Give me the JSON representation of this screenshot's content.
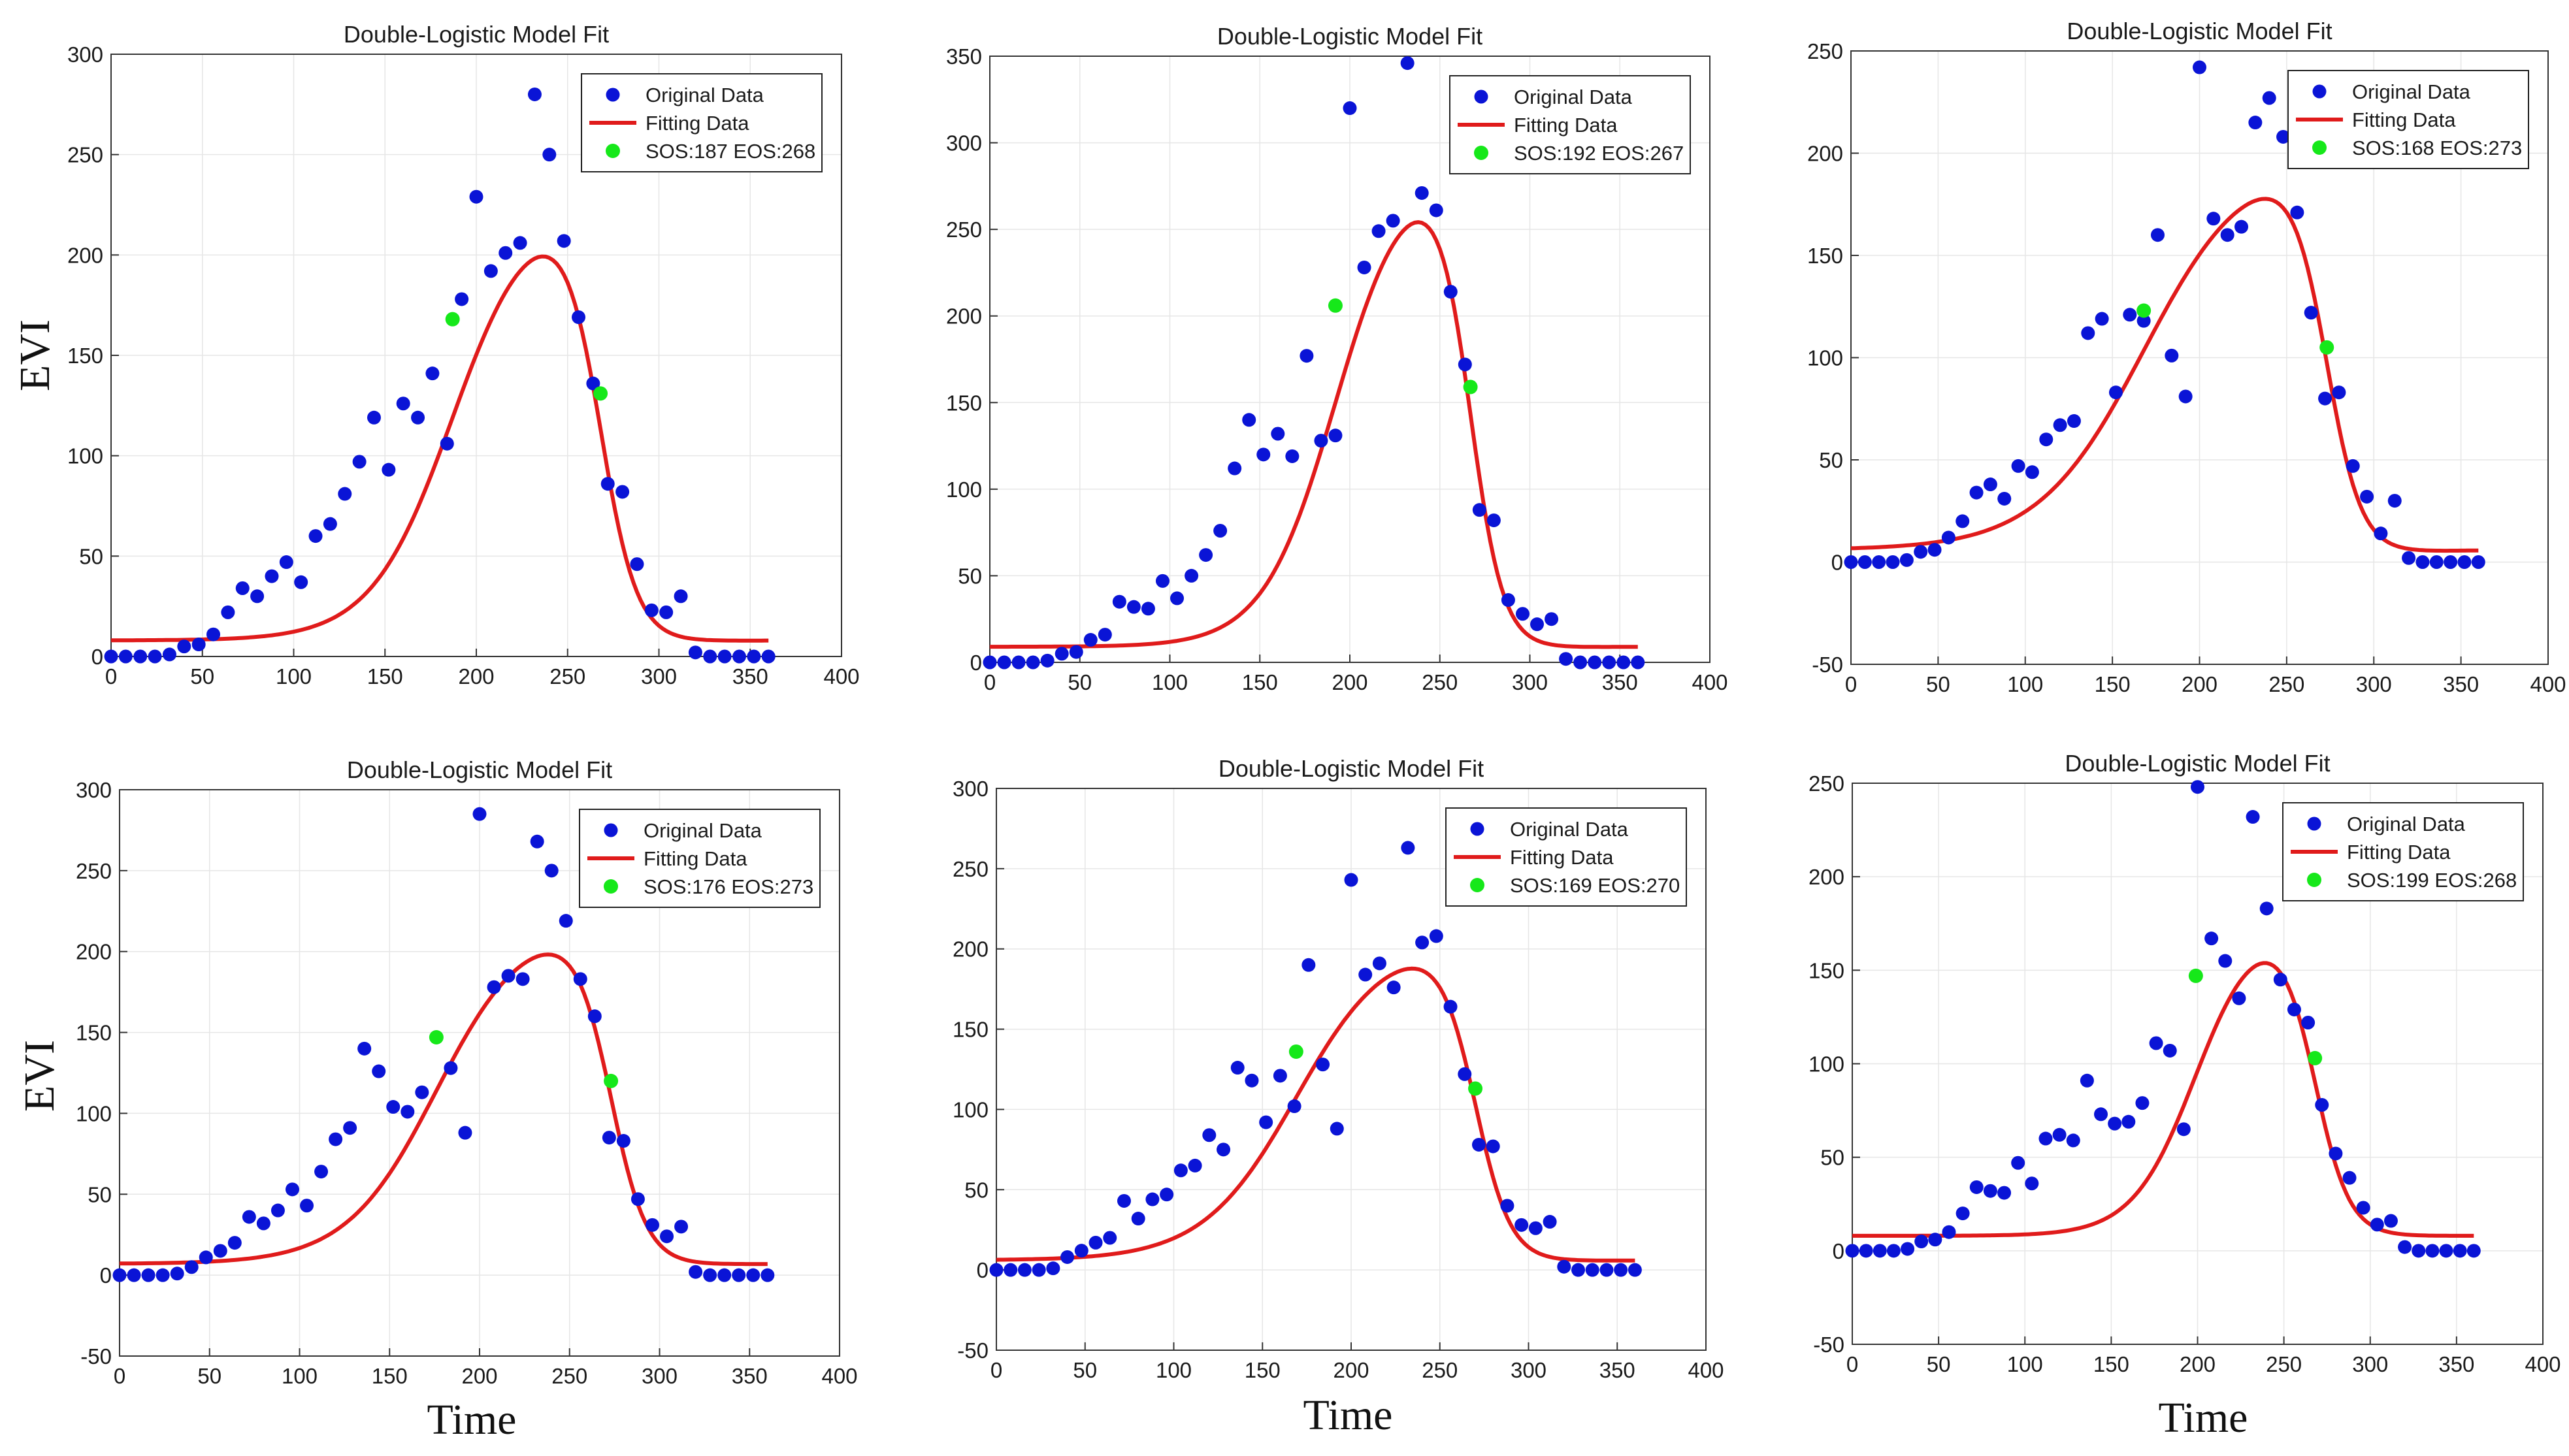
{
  "figure": {
    "ylabel_top": "EVI",
    "ylabel_bottom": "EVI",
    "xlabel_bottom": [
      "Time",
      "Time",
      "Time"
    ]
  },
  "colors": {
    "original": "#0a14d6",
    "fitting": "#e01b1b",
    "phenology": "#16e81a",
    "axis": "#333333",
    "grid": "#e6e6e6"
  },
  "chart_data": [
    {
      "type": "scatter",
      "title": "Double-Logistic Model Fit",
      "xlim": [
        0,
        400
      ],
      "ylim": [
        0,
        300
      ],
      "xticks": [
        0,
        50,
        100,
        150,
        200,
        250,
        300,
        350,
        400
      ],
      "yticks": [
        0,
        50,
        100,
        150,
        200,
        250,
        300
      ],
      "legend": [
        "Original Data",
        "Fitting Data",
        "SOS:187  EOS:268"
      ],
      "series": [
        {
          "name": "Original Data",
          "x": [
            0,
            8,
            16,
            24,
            32,
            40,
            48,
            56,
            64,
            72,
            80,
            88,
            96,
            104,
            112,
            120,
            128,
            136,
            144,
            152,
            160,
            168,
            176,
            184,
            192,
            200,
            208,
            216,
            224,
            232,
            240,
            248,
            256,
            264,
            272,
            280,
            288,
            296,
            304,
            312,
            320,
            328,
            336,
            344,
            352,
            360
          ],
          "y": [
            0,
            0,
            0,
            0,
            1,
            5,
            6,
            11,
            22,
            34,
            30,
            40,
            47,
            37,
            60,
            66,
            81,
            97,
            119,
            93,
            126,
            119,
            141,
            106,
            178,
            229,
            192,
            201,
            206,
            280,
            250,
            207,
            169,
            136,
            86,
            82,
            46,
            23,
            22,
            30,
            2,
            0,
            0,
            0,
            0,
            0
          ]
        },
        {
          "name": "Fitting Data",
          "model": {
            "base": 8,
            "amp": 222,
            "sos": 187,
            "eos": 268,
            "k1": 0.045,
            "k2": 0.1
          }
        },
        {
          "name": "SOS / EOS",
          "x": [
            187,
            268
          ],
          "y": [
            168,
            131
          ]
        }
      ]
    },
    {
      "type": "scatter",
      "title": "Double-Logistic Model Fit",
      "xlim": [
        0,
        400
      ],
      "ylim": [
        0,
        350
      ],
      "xticks": [
        0,
        50,
        100,
        150,
        200,
        250,
        300,
        350,
        400
      ],
      "yticks": [
        0,
        50,
        100,
        150,
        200,
        250,
        300,
        350
      ],
      "legend": [
        "Original Data",
        "Fitting Data",
        "SOS:192  EOS:267"
      ],
      "series": [
        {
          "name": "Original Data",
          "x": [
            0,
            8,
            16,
            24,
            32,
            40,
            48,
            56,
            64,
            72,
            80,
            88,
            96,
            104,
            112,
            120,
            128,
            136,
            144,
            152,
            160,
            168,
            176,
            184,
            192,
            200,
            208,
            216,
            224,
            232,
            240,
            248,
            256,
            264,
            272,
            280,
            288,
            296,
            304,
            312,
            320,
            328,
            336,
            344,
            352,
            360
          ],
          "y": [
            0,
            0,
            0,
            0,
            1,
            5,
            6,
            13,
            16,
            35,
            32,
            31,
            47,
            37,
            50,
            62,
            76,
            112,
            140,
            120,
            132,
            119,
            177,
            128,
            131,
            320,
            228,
            249,
            255,
            346,
            271,
            261,
            214,
            172,
            88,
            82,
            36,
            28,
            22,
            25,
            2,
            0,
            0,
            0,
            0,
            0
          ]
        },
        {
          "name": "Fitting Data",
          "model": {
            "base": 9,
            "amp": 282,
            "sos": 192,
            "eos": 267,
            "k1": 0.05,
            "k2": 0.11
          }
        },
        {
          "name": "SOS / EOS",
          "x": [
            192,
            267
          ],
          "y": [
            206,
            159
          ]
        }
      ]
    },
    {
      "type": "scatter",
      "title": "Double-Logistic Model Fit",
      "xlim": [
        0,
        400
      ],
      "ylim": [
        -50,
        250
      ],
      "xticks": [
        0,
        50,
        100,
        150,
        200,
        250,
        300,
        350,
        400
      ],
      "yticks": [
        -50,
        0,
        50,
        100,
        150,
        200,
        250
      ],
      "legend": [
        "Original Data",
        "Fitting Data",
        "SOS:168  EOS:273"
      ],
      "series": [
        {
          "name": "Original Data",
          "x": [
            0,
            8,
            16,
            24,
            32,
            40,
            48,
            56,
            64,
            72,
            80,
            88,
            96,
            104,
            112,
            120,
            128,
            136,
            144,
            152,
            160,
            168,
            176,
            184,
            192,
            200,
            208,
            216,
            224,
            232,
            240,
            248,
            256,
            264,
            272,
            280,
            288,
            296,
            304,
            312,
            320,
            328,
            336,
            344,
            352,
            360
          ],
          "y": [
            0,
            0,
            0,
            0,
            1,
            5,
            6,
            12,
            20,
            34,
            38,
            31,
            47,
            44,
            60,
            67,
            69,
            112,
            119,
            83,
            121,
            118,
            160,
            101,
            81,
            242,
            168,
            160,
            164,
            215,
            227,
            208,
            171,
            122,
            80,
            83,
            47,
            32,
            14,
            30,
            2,
            0,
            0,
            0,
            0,
            0
          ]
        },
        {
          "name": "Fitting Data",
          "model": {
            "base": 6,
            "amp": 195,
            "sos": 168,
            "eos": 273,
            "k1": 0.033,
            "k2": 0.1
          }
        },
        {
          "name": "SOS / EOS",
          "x": [
            168,
            273
          ],
          "y": [
            123,
            105
          ]
        }
      ]
    },
    {
      "type": "scatter",
      "title": "Double-Logistic Model Fit",
      "xlim": [
        0,
        400
      ],
      "ylim": [
        -50,
        300
      ],
      "xticks": [
        0,
        50,
        100,
        150,
        200,
        250,
        300,
        350,
        400
      ],
      "yticks": [
        -50,
        0,
        50,
        100,
        150,
        200,
        250,
        300
      ],
      "legend": [
        "Original Data",
        "Fitting Data",
        "SOS:176  EOS:273"
      ],
      "series": [
        {
          "name": "Original Data",
          "x": [
            0,
            8,
            16,
            24,
            32,
            40,
            48,
            56,
            64,
            72,
            80,
            88,
            96,
            104,
            112,
            120,
            128,
            136,
            144,
            152,
            160,
            168,
            176,
            184,
            192,
            200,
            208,
            216,
            224,
            232,
            240,
            248,
            256,
            264,
            272,
            280,
            288,
            296,
            304,
            312,
            320,
            328,
            336,
            344,
            352,
            360
          ],
          "y": [
            0,
            0,
            0,
            0,
            1,
            5,
            11,
            15,
            20,
            36,
            32,
            40,
            53,
            43,
            64,
            84,
            91,
            140,
            126,
            104,
            101,
            113,
            147,
            128,
            88,
            285,
            178,
            185,
            183,
            268,
            250,
            219,
            183,
            160,
            85,
            83,
            47,
            31,
            24,
            30,
            2,
            0,
            0,
            0,
            0,
            0
          ]
        },
        {
          "name": "Fitting Data",
          "model": {
            "base": 7,
            "amp": 214,
            "sos": 176,
            "eos": 273,
            "k1": 0.04,
            "k2": 0.1
          }
        },
        {
          "name": "SOS / EOS",
          "x": [
            176,
            273
          ],
          "y": [
            147,
            120
          ]
        }
      ]
    },
    {
      "type": "scatter",
      "title": "Double-Logistic Model Fit",
      "xlim": [
        0,
        400
      ],
      "ylim": [
        -50,
        300
      ],
      "xticks": [
        0,
        50,
        100,
        150,
        200,
        250,
        300,
        350,
        400
      ],
      "yticks": [
        -50,
        0,
        50,
        100,
        150,
        200,
        250,
        300
      ],
      "legend": [
        "Original Data",
        "Fitting Data",
        "SOS:169  EOS:270"
      ],
      "series": [
        {
          "name": "Original Data",
          "x": [
            0,
            8,
            16,
            24,
            32,
            40,
            48,
            56,
            64,
            72,
            80,
            88,
            96,
            104,
            112,
            120,
            128,
            136,
            144,
            152,
            160,
            168,
            176,
            184,
            192,
            200,
            208,
            216,
            224,
            232,
            240,
            248,
            256,
            264,
            272,
            280,
            288,
            296,
            304,
            312,
            320,
            328,
            336,
            344,
            352,
            360
          ],
          "y": [
            0,
            0,
            0,
            0,
            1,
            8,
            12,
            17,
            20,
            43,
            32,
            44,
            47,
            62,
            65,
            84,
            75,
            126,
            118,
            92,
            121,
            102,
            190,
            128,
            88,
            243,
            184,
            191,
            176,
            263,
            204,
            208,
            164,
            122,
            78,
            77,
            40,
            28,
            26,
            30,
            2,
            0,
            0,
            0,
            0,
            0
          ]
        },
        {
          "name": "Fitting Data",
          "model": {
            "base": 6,
            "amp": 203,
            "sos": 169,
            "eos": 270,
            "k1": 0.038,
            "k2": 0.1
          }
        },
        {
          "name": "SOS / EOS",
          "x": [
            169,
            270
          ],
          "y": [
            136,
            113
          ]
        }
      ]
    },
    {
      "type": "scatter",
      "title": "Double-Logistic Model Fit",
      "xlim": [
        0,
        400
      ],
      "ylim": [
        -50,
        250
      ],
      "xticks": [
        0,
        50,
        100,
        150,
        200,
        250,
        300,
        350,
        400
      ],
      "yticks": [
        -50,
        0,
        50,
        100,
        150,
        200,
        250
      ],
      "legend": [
        "Original Data",
        "Fitting Data",
        "SOS:199  EOS:268"
      ],
      "series": [
        {
          "name": "Original Data",
          "x": [
            0,
            8,
            16,
            24,
            32,
            40,
            48,
            56,
            64,
            72,
            80,
            88,
            96,
            104,
            112,
            120,
            128,
            136,
            144,
            152,
            160,
            168,
            176,
            184,
            192,
            200,
            208,
            216,
            224,
            232,
            240,
            248,
            256,
            264,
            272,
            280,
            288,
            296,
            304,
            312,
            320,
            328,
            336,
            344,
            352,
            360
          ],
          "y": [
            0,
            0,
            0,
            0,
            1,
            5,
            6,
            10,
            20,
            34,
            32,
            31,
            47,
            36,
            60,
            62,
            59,
            91,
            73,
            68,
            69,
            79,
            111,
            107,
            65,
            248,
            167,
            155,
            135,
            232,
            183,
            145,
            129,
            122,
            78,
            52,
            39,
            23,
            14,
            16,
            2,
            0,
            0,
            0,
            0,
            0
          ]
        },
        {
          "name": "Fitting Data",
          "model": {
            "base": 8,
            "amp": 172,
            "sos": 199,
            "eos": 268,
            "k1": 0.055,
            "k2": 0.1
          }
        },
        {
          "name": "SOS / EOS",
          "x": [
            199,
            268
          ],
          "y": [
            147,
            103
          ]
        }
      ]
    }
  ]
}
